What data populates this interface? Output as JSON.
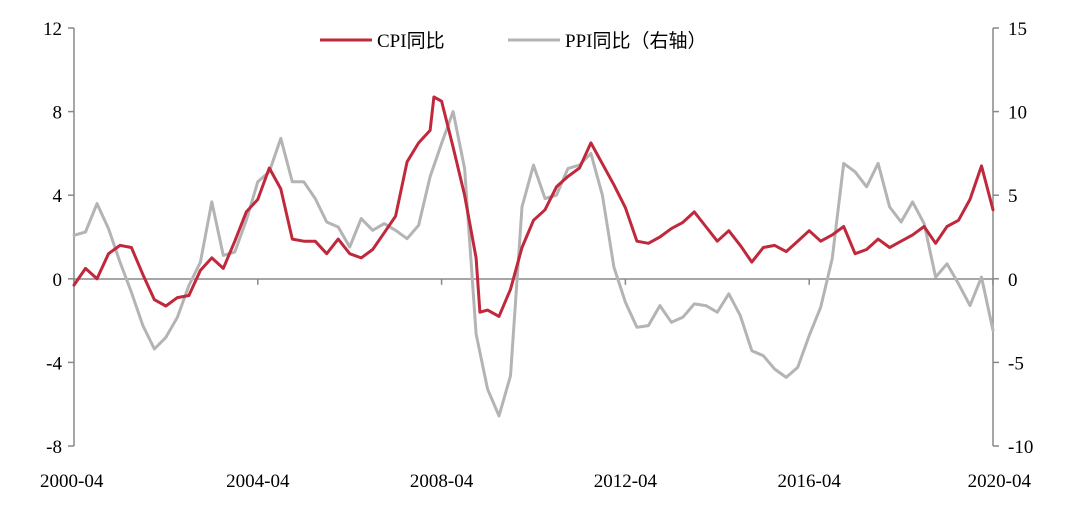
{
  "chart_data": {
    "type": "line",
    "title": "",
    "xlabel": "",
    "ylabel": "",
    "x_ticks": [
      "2000-04",
      "2004-04",
      "2008-04",
      "2012-04",
      "2016-04",
      "2020-04"
    ],
    "y_left": {
      "lim": [
        -8,
        12
      ],
      "ticks": [
        "12",
        "8",
        "4",
        "0",
        "-4",
        "-8"
      ]
    },
    "y_right": {
      "lim": [
        -10,
        15
      ],
      "ticks": [
        "15",
        "10",
        "5",
        "0",
        "-5",
        "-10"
      ]
    },
    "grid": false,
    "legend_position": "top-center",
    "series": [
      {
        "name": "CPI同比",
        "axis": "left",
        "color": "#c0283c",
        "points": [
          [
            "2000-04",
            -0.3
          ],
          [
            "2000-07",
            0.5
          ],
          [
            "2000-10",
            0.0
          ],
          [
            "2001-01",
            1.2
          ],
          [
            "2001-04",
            1.6
          ],
          [
            "2001-07",
            1.5
          ],
          [
            "2001-10",
            0.2
          ],
          [
            "2002-01",
            -1.0
          ],
          [
            "2002-04",
            -1.3
          ],
          [
            "2002-07",
            -0.9
          ],
          [
            "2002-10",
            -0.8
          ],
          [
            "2003-01",
            0.4
          ],
          [
            "2003-04",
            1.0
          ],
          [
            "2003-07",
            0.5
          ],
          [
            "2003-10",
            1.8
          ],
          [
            "2004-01",
            3.2
          ],
          [
            "2004-04",
            3.8
          ],
          [
            "2004-07",
            5.3
          ],
          [
            "2004-10",
            4.3
          ],
          [
            "2005-01",
            1.9
          ],
          [
            "2005-04",
            1.8
          ],
          [
            "2005-07",
            1.8
          ],
          [
            "2005-10",
            1.2
          ],
          [
            "2006-01",
            1.9
          ],
          [
            "2006-04",
            1.2
          ],
          [
            "2006-07",
            1.0
          ],
          [
            "2006-10",
            1.4
          ],
          [
            "2007-01",
            2.2
          ],
          [
            "2007-04",
            3.0
          ],
          [
            "2007-07",
            5.6
          ],
          [
            "2007-10",
            6.5
          ],
          [
            "2008-01",
            7.1
          ],
          [
            "2008-02",
            8.7
          ],
          [
            "2008-04",
            8.5
          ],
          [
            "2008-07",
            6.3
          ],
          [
            "2008-10",
            4.0
          ],
          [
            "2009-01",
            1.0
          ],
          [
            "2009-02",
            -1.6
          ],
          [
            "2009-04",
            -1.5
          ],
          [
            "2009-07",
            -1.8
          ],
          [
            "2009-10",
            -0.5
          ],
          [
            "2010-01",
            1.5
          ],
          [
            "2010-04",
            2.8
          ],
          [
            "2010-07",
            3.3
          ],
          [
            "2010-10",
            4.4
          ],
          [
            "2011-01",
            4.9
          ],
          [
            "2011-04",
            5.3
          ],
          [
            "2011-07",
            6.5
          ],
          [
            "2011-10",
            5.5
          ],
          [
            "2012-01",
            4.5
          ],
          [
            "2012-04",
            3.4
          ],
          [
            "2012-07",
            1.8
          ],
          [
            "2012-10",
            1.7
          ],
          [
            "2013-01",
            2.0
          ],
          [
            "2013-04",
            2.4
          ],
          [
            "2013-07",
            2.7
          ],
          [
            "2013-10",
            3.2
          ],
          [
            "2014-01",
            2.5
          ],
          [
            "2014-04",
            1.8
          ],
          [
            "2014-07",
            2.3
          ],
          [
            "2014-10",
            1.6
          ],
          [
            "2015-01",
            0.8
          ],
          [
            "2015-04",
            1.5
          ],
          [
            "2015-07",
            1.6
          ],
          [
            "2015-10",
            1.3
          ],
          [
            "2016-01",
            1.8
          ],
          [
            "2016-04",
            2.3
          ],
          [
            "2016-07",
            1.8
          ],
          [
            "2016-10",
            2.1
          ],
          [
            "2017-01",
            2.5
          ],
          [
            "2017-04",
            1.2
          ],
          [
            "2017-07",
            1.4
          ],
          [
            "2017-10",
            1.9
          ],
          [
            "2018-01",
            1.5
          ],
          [
            "2018-04",
            1.8
          ],
          [
            "2018-07",
            2.1
          ],
          [
            "2018-10",
            2.5
          ],
          [
            "2019-01",
            1.7
          ],
          [
            "2019-04",
            2.5
          ],
          [
            "2019-07",
            2.8
          ],
          [
            "2019-10",
            3.8
          ],
          [
            "2020-01",
            5.4
          ],
          [
            "2020-04",
            3.3
          ]
        ]
      },
      {
        "name": "PPI同比（右轴）",
        "axis": "right",
        "color": "#b4b4b4",
        "points": [
          [
            "2000-04",
            2.6
          ],
          [
            "2000-07",
            2.8
          ],
          [
            "2000-10",
            4.5
          ],
          [
            "2001-01",
            3.0
          ],
          [
            "2001-04",
            1.0
          ],
          [
            "2001-07",
            -0.8
          ],
          [
            "2001-10",
            -2.8
          ],
          [
            "2002-01",
            -4.2
          ],
          [
            "2002-04",
            -3.5
          ],
          [
            "2002-07",
            -2.3
          ],
          [
            "2002-10",
            -0.4
          ],
          [
            "2003-01",
            1.0
          ],
          [
            "2003-04",
            4.6
          ],
          [
            "2003-07",
            1.4
          ],
          [
            "2003-10",
            1.6
          ],
          [
            "2004-01",
            3.5
          ],
          [
            "2004-04",
            5.8
          ],
          [
            "2004-07",
            6.4
          ],
          [
            "2004-10",
            8.4
          ],
          [
            "2005-01",
            5.8
          ],
          [
            "2005-04",
            5.8
          ],
          [
            "2005-07",
            4.8
          ],
          [
            "2005-10",
            3.4
          ],
          [
            "2006-01",
            3.1
          ],
          [
            "2006-04",
            1.9
          ],
          [
            "2006-07",
            3.6
          ],
          [
            "2006-10",
            2.9
          ],
          [
            "2007-01",
            3.3
          ],
          [
            "2007-04",
            2.9
          ],
          [
            "2007-07",
            2.4
          ],
          [
            "2007-10",
            3.2
          ],
          [
            "2008-01",
            6.1
          ],
          [
            "2008-04",
            8.1
          ],
          [
            "2008-07",
            10.0
          ],
          [
            "2008-10",
            6.6
          ],
          [
            "2009-01",
            -3.3
          ],
          [
            "2009-04",
            -6.6
          ],
          [
            "2009-07",
            -8.2
          ],
          [
            "2009-10",
            -5.8
          ],
          [
            "2010-01",
            4.3
          ],
          [
            "2010-04",
            6.8
          ],
          [
            "2010-07",
            4.8
          ],
          [
            "2010-10",
            5.0
          ],
          [
            "2011-01",
            6.6
          ],
          [
            "2011-04",
            6.8
          ],
          [
            "2011-07",
            7.5
          ],
          [
            "2011-10",
            5.0
          ],
          [
            "2012-01",
            0.7
          ],
          [
            "2012-04",
            -1.4
          ],
          [
            "2012-07",
            -2.9
          ],
          [
            "2012-10",
            -2.8
          ],
          [
            "2013-01",
            -1.6
          ],
          [
            "2013-04",
            -2.6
          ],
          [
            "2013-07",
            -2.3
          ],
          [
            "2013-10",
            -1.5
          ],
          [
            "2014-01",
            -1.6
          ],
          [
            "2014-04",
            -2.0
          ],
          [
            "2014-07",
            -0.9
          ],
          [
            "2014-10",
            -2.2
          ],
          [
            "2015-01",
            -4.3
          ],
          [
            "2015-04",
            -4.6
          ],
          [
            "2015-07",
            -5.4
          ],
          [
            "2015-10",
            -5.9
          ],
          [
            "2016-01",
            -5.3
          ],
          [
            "2016-04",
            -3.4
          ],
          [
            "2016-07",
            -1.7
          ],
          [
            "2016-10",
            1.2
          ],
          [
            "2017-01",
            6.9
          ],
          [
            "2017-04",
            6.4
          ],
          [
            "2017-07",
            5.5
          ],
          [
            "2017-10",
            6.9
          ],
          [
            "2018-01",
            4.3
          ],
          [
            "2018-04",
            3.4
          ],
          [
            "2018-07",
            4.6
          ],
          [
            "2018-10",
            3.3
          ],
          [
            "2019-01",
            0.1
          ],
          [
            "2019-04",
            0.9
          ],
          [
            "2019-07",
            -0.3
          ],
          [
            "2019-10",
            -1.6
          ],
          [
            "2020-01",
            0.1
          ],
          [
            "2020-04",
            -3.1
          ]
        ]
      }
    ]
  }
}
